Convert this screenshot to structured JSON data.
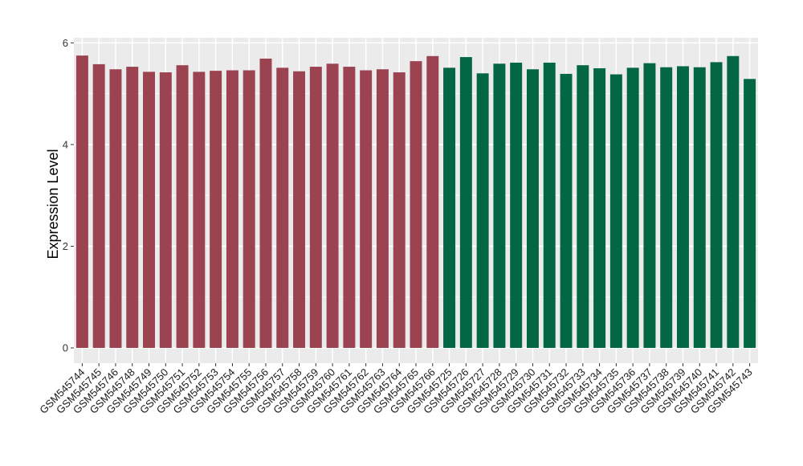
{
  "chart_data": {
    "type": "bar",
    "title": "",
    "xlabel": "",
    "ylabel": "Expression Level",
    "ylim": [
      -0.3,
      6.1
    ],
    "yticks": [
      0,
      2,
      4,
      6
    ],
    "grid": true,
    "legend": "none",
    "categories": [
      "GSM545744",
      "GSM545745",
      "GSM545746",
      "GSM545748",
      "GSM545749",
      "GSM545750",
      "GSM545751",
      "GSM545752",
      "GSM545753",
      "GSM545754",
      "GSM545755",
      "GSM545756",
      "GSM545757",
      "GSM545758",
      "GSM545759",
      "GSM545760",
      "GSM545761",
      "GSM545762",
      "GSM545763",
      "GSM545764",
      "GSM545765",
      "GSM545766",
      "GSM545725",
      "GSM545726",
      "GSM545727",
      "GSM545728",
      "GSM545729",
      "GSM545730",
      "GSM545731",
      "GSM545732",
      "GSM545733",
      "GSM545734",
      "GSM545735",
      "GSM545736",
      "GSM545737",
      "GSM545738",
      "GSM545739",
      "GSM545740",
      "GSM545741",
      "GSM545742",
      "GSM545743"
    ],
    "values": [
      5.75,
      5.58,
      5.48,
      5.53,
      5.43,
      5.42,
      5.56,
      5.43,
      5.45,
      5.46,
      5.46,
      5.69,
      5.51,
      5.44,
      5.53,
      5.59,
      5.53,
      5.46,
      5.48,
      5.42,
      5.64,
      5.74,
      5.51,
      5.72,
      5.4,
      5.59,
      5.61,
      5.48,
      5.61,
      5.39,
      5.56,
      5.5,
      5.38,
      5.51,
      5.6,
      5.52,
      5.54,
      5.52,
      5.62,
      5.74,
      5.29
    ],
    "group_sizes": [
      22,
      19
    ],
    "colors": [
      "#9b4350",
      "#046744"
    ],
    "panel_background": "#ebebeb",
    "gridline_color": "#ffffff"
  }
}
